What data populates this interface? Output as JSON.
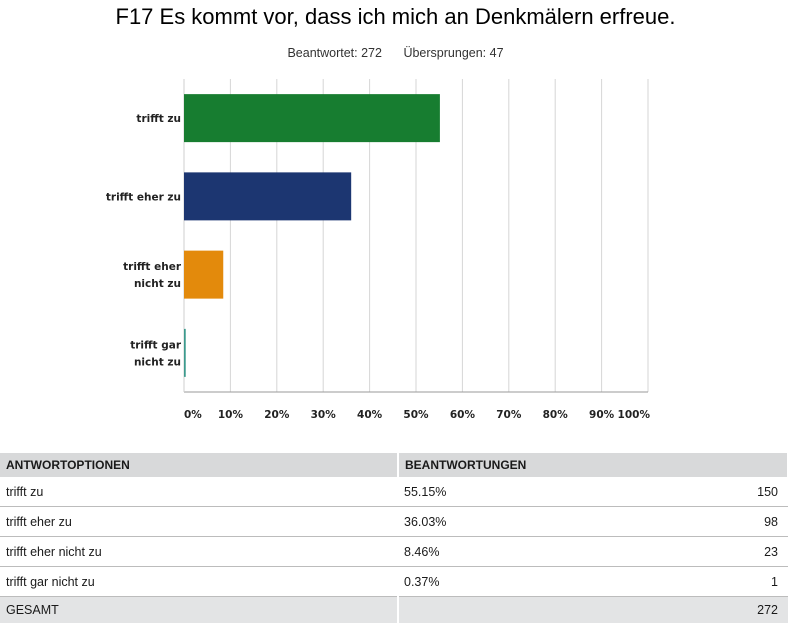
{
  "title": "F17 Es kommt vor, dass ich mich an Denkmälern erfreue.",
  "stats": {
    "answered": "Beantwortet: 272",
    "skipped": "Übersprungen: 47"
  },
  "chart_data": {
    "type": "bar",
    "orientation": "horizontal",
    "title": "F17 Es kommt vor, dass ich mich an Denkmälern erfreue.",
    "categories": [
      [
        "trifft zu"
      ],
      [
        "trifft eher zu"
      ],
      [
        "trifft eher",
        "nicht zu"
      ],
      [
        "trifft gar",
        "nicht zu"
      ]
    ],
    "values": [
      55.15,
      36.03,
      8.46,
      0.37
    ],
    "colors": [
      "#177d30",
      "#1c3671",
      "#e38a0c",
      "#3c9a8d"
    ],
    "xlim": [
      0,
      100
    ],
    "xticks": [
      "0%",
      "10%",
      "20%",
      "30%",
      "40%",
      "50%",
      "60%",
      "70%",
      "80%",
      "90%",
      "100%"
    ],
    "grid": true,
    "xlabel": "",
    "ylabel": ""
  },
  "table": {
    "headers": [
      "ANTWORTOPTIONEN",
      "BEANTWORTUNGEN"
    ],
    "rows": [
      {
        "option": "trifft zu",
        "percent": "55.15%",
        "count": "150"
      },
      {
        "option": "trifft eher zu",
        "percent": "36.03%",
        "count": "98"
      },
      {
        "option": "trifft eher nicht zu",
        "percent": "8.46%",
        "count": "23"
      },
      {
        "option": "trifft gar nicht zu",
        "percent": "0.37%",
        "count": "1"
      }
    ],
    "total": {
      "label": "GESAMT",
      "count": "272"
    }
  }
}
